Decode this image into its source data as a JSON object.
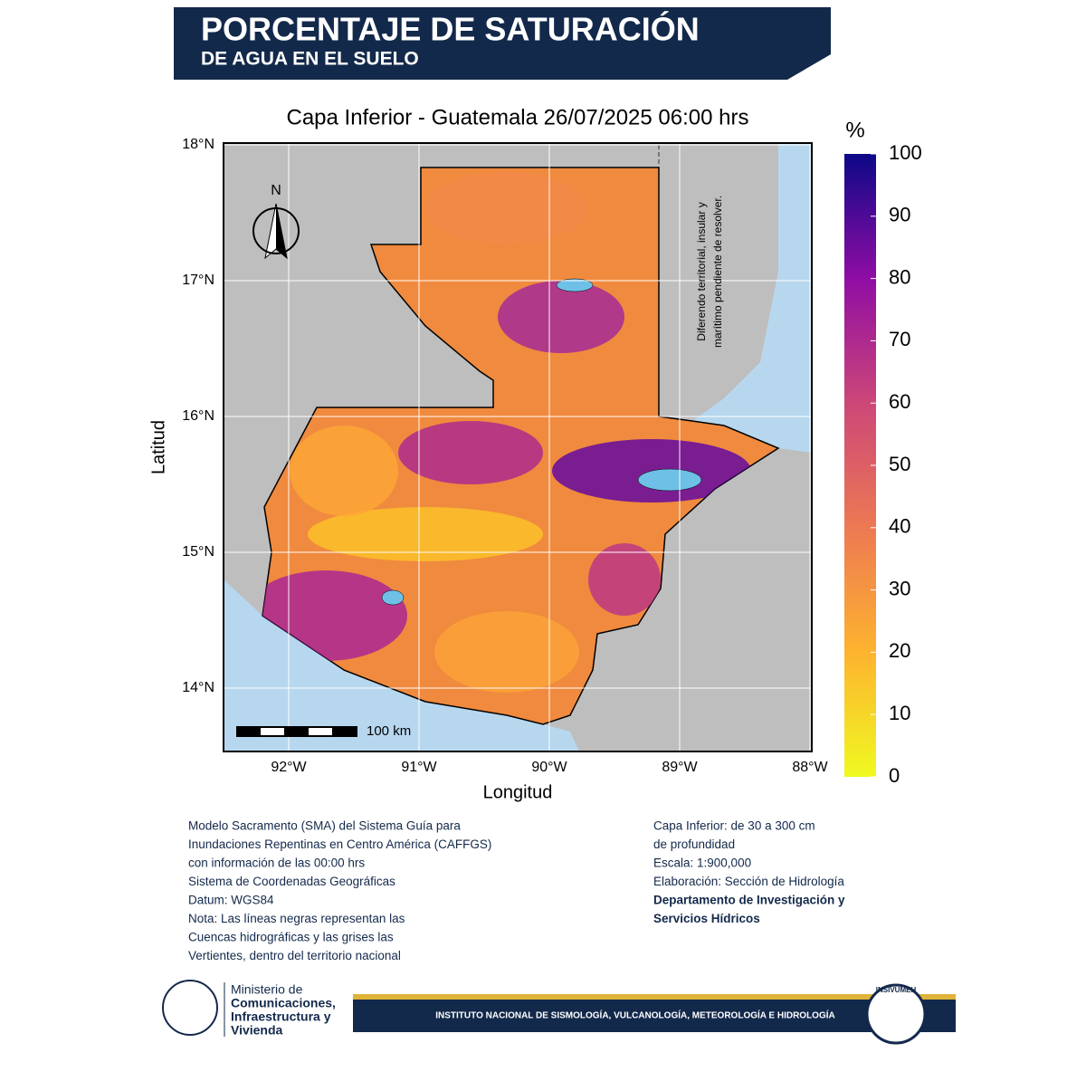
{
  "header": {
    "title": "PORCENTAJE DE SATURACIÓN",
    "subtitle": "DE AGUA EN EL SUELO"
  },
  "map": {
    "title": "Capa Inferior - Guatemala 26/07/2025 06:00 hrs",
    "x_label": "Longitud",
    "y_label": "Latitud",
    "lon_ticks": [
      {
        "value": -92,
        "label": "92°W"
      },
      {
        "value": -91,
        "label": "91°W"
      },
      {
        "value": -90,
        "label": "90°W"
      },
      {
        "value": -89,
        "label": "89°W"
      },
      {
        "value": -88,
        "label": "88°W"
      }
    ],
    "lat_ticks": [
      {
        "value": 18,
        "label": "18°N"
      },
      {
        "value": 17,
        "label": "17°N"
      },
      {
        "value": 16,
        "label": "16°N"
      },
      {
        "value": 15,
        "label": "15°N"
      },
      {
        "value": 14,
        "label": "14°N"
      }
    ],
    "north": "N",
    "scale_bar": "100 km",
    "dispute_note": [
      "Diferendo territorial, insular y",
      "marítimo pendiente de resolver."
    ],
    "colorbar": {
      "title": "%",
      "ticks": [
        0,
        10,
        20,
        30,
        40,
        50,
        60,
        70,
        80,
        90,
        100
      ]
    }
  },
  "notes_left": [
    "Modelo Sacramento (SMA) del Sistema Guía para",
    "Inundaciones Repentinas en Centro América (CAFFGS)",
    "con información de las 00:00 hrs",
    "Sistema de Coordenadas Geográficas",
    "Datum: WGS84",
    "Nota: Las líneas negras representan las",
    "Cuencas hidrográficas y las grises las",
    "Vertientes, dentro del territorio nacional"
  ],
  "notes_right": [
    "Capa Inferior: de 30 a 300 cm",
    "de profundidad",
    "Escala: 1:900,000",
    "Elaboración: Sección de Hidrología"
  ],
  "notes_right_bold": [
    "Departamento de Investigación y",
    "Servicios Hídricos"
  ],
  "footer": {
    "ministry": [
      "Ministerio de",
      "Comunicaciones,",
      "Infraestructura y",
      "Vivienda"
    ],
    "institute": "INSTITUTO NACIONAL DE SISMOLOGÍA, VULCANOLOGÍA, METEOROLOGÍA E HIDROLOGÍA",
    "seal": "INSIVUMEH"
  }
}
